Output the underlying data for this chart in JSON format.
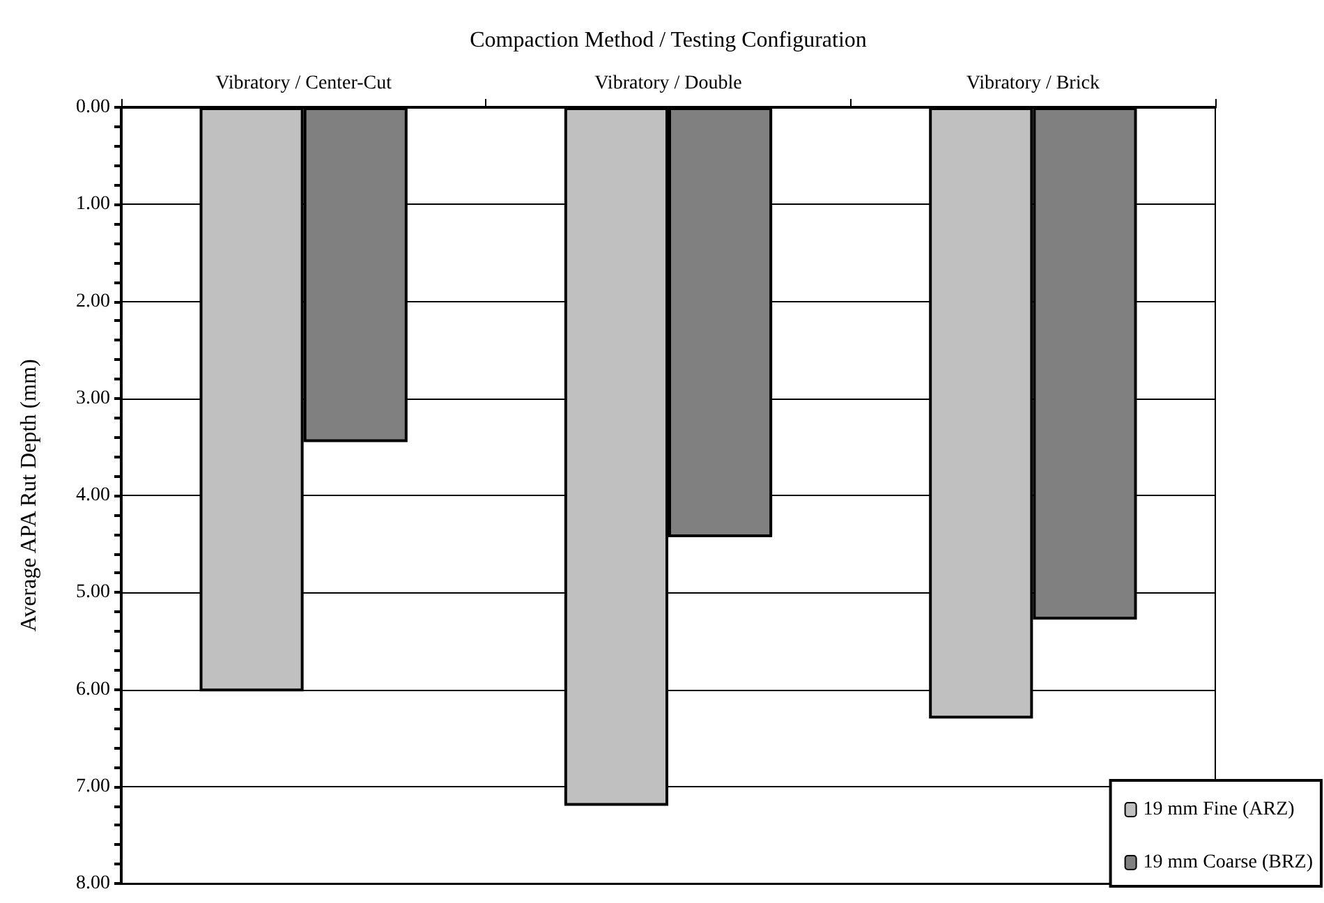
{
  "chart_data": {
    "type": "bar",
    "xlabel": "Compaction Method / Testing Configuration",
    "ylabel": "Average APA Rut Depth (mm)",
    "categories": [
      "Vibratory / Center-Cut",
      "Vibratory / Double",
      "Vibratory / Brick"
    ],
    "series": [
      {
        "name": "19 mm Fine (ARZ)",
        "color": "#c0c0c0",
        "values": [
          6.02,
          7.2,
          6.3
        ]
      },
      {
        "name": "19 mm Coarse (BRZ)",
        "color": "#808080",
        "values": [
          3.45,
          4.43,
          5.28
        ]
      }
    ],
    "ylim": [
      8,
      0
    ],
    "yticks": [
      {
        "value": 0,
        "label": "0.00"
      },
      {
        "value": 0.2,
        "label": null
      },
      {
        "value": 0.4,
        "label": null
      },
      {
        "value": 0.6,
        "label": null
      },
      {
        "value": 0.8,
        "label": null
      },
      {
        "value": 1,
        "label": "1.00"
      },
      {
        "value": 1.2,
        "label": null
      },
      {
        "value": 1.4,
        "label": null
      },
      {
        "value": 1.6,
        "label": null
      },
      {
        "value": 1.8,
        "label": null
      },
      {
        "value": 2,
        "label": "2.00"
      },
      {
        "value": 2.2,
        "label": null
      },
      {
        "value": 2.4,
        "label": null
      },
      {
        "value": 2.6,
        "label": null
      },
      {
        "value": 2.8,
        "label": null
      },
      {
        "value": 3,
        "label": "3.00"
      },
      {
        "value": 3.2,
        "label": null
      },
      {
        "value": 3.4,
        "label": null
      },
      {
        "value": 3.6,
        "label": null
      },
      {
        "value": 3.8,
        "label": null
      },
      {
        "value": 4,
        "label": "4.00"
      },
      {
        "value": 4.2,
        "label": null
      },
      {
        "value": 4.4,
        "label": null
      },
      {
        "value": 4.6,
        "label": null
      },
      {
        "value": 4.8,
        "label": null
      },
      {
        "value": 5,
        "label": "5.00"
      },
      {
        "value": 5.2,
        "label": null
      },
      {
        "value": 5.4,
        "label": null
      },
      {
        "value": 5.6,
        "label": null
      },
      {
        "value": 5.8,
        "label": null
      },
      {
        "value": 6,
        "label": "6.00"
      },
      {
        "value": 6.2,
        "label": null
      },
      {
        "value": 6.4,
        "label": null
      },
      {
        "value": 6.6,
        "label": null
      },
      {
        "value": 6.8,
        "label": null
      },
      {
        "value": 7,
        "label": "7.00"
      },
      {
        "value": 7.2,
        "label": null
      },
      {
        "value": 7.4,
        "label": null
      },
      {
        "value": 7.6,
        "label": null
      },
      {
        "value": 7.8,
        "label": null
      },
      {
        "value": 8,
        "label": "8.00"
      }
    ],
    "grid": "y",
    "legend": "bottom right"
  }
}
